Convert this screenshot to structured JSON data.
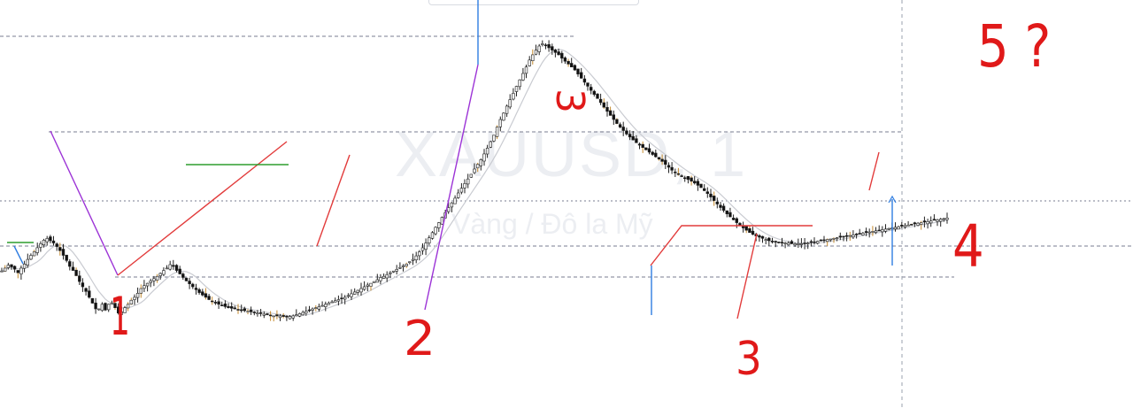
{
  "chart_data": {
    "type": "candlestick",
    "symbol_watermark": "XAUUSD, 1",
    "description_watermark": "Vàng / Đô la Mỹ",
    "y_axis_visible": false,
    "x_axis_visible": false,
    "close_series": [
      235,
      240,
      245,
      242,
      238,
      232,
      240,
      247,
      255,
      262,
      268,
      275,
      282,
      288,
      291,
      287,
      283,
      277,
      270,
      262,
      253,
      243,
      236,
      227,
      217,
      208,
      200,
      190,
      180,
      170,
      170,
      178,
      168,
      178,
      180,
      172,
      163,
      165,
      172,
      178,
      185,
      190,
      197,
      205,
      210,
      214,
      218,
      222,
      226,
      231,
      236,
      240,
      246,
      243,
      236,
      230,
      224,
      218,
      213,
      208,
      203,
      198,
      194,
      190,
      186,
      183,
      180,
      178,
      176,
      174,
      172,
      171,
      170,
      169,
      168,
      167,
      166,
      165,
      164,
      163,
      162,
      161,
      160,
      159,
      158,
      158,
      158,
      157,
      156,
      157,
      158,
      160,
      162,
      164,
      166,
      168,
      170,
      172,
      174,
      176,
      178,
      180,
      182,
      184,
      186,
      188,
      190,
      193,
      196,
      199,
      202,
      205,
      208,
      211,
      214,
      217,
      220,
      224,
      226,
      229,
      232,
      235,
      238,
      241,
      244,
      247,
      251,
      255,
      261,
      268,
      275,
      283,
      292,
      301,
      310,
      318,
      327,
      335,
      344,
      352,
      360,
      369,
      377,
      385,
      393,
      401,
      410,
      418,
      426,
      436,
      446,
      457,
      468,
      482,
      495,
      506,
      518,
      529,
      540,
      552,
      563,
      574,
      585,
      597,
      606,
      614,
      621,
      625,
      622,
      618,
      614,
      610,
      606,
      600,
      595,
      590,
      585,
      580,
      573,
      566,
      559,
      552,
      545,
      538,
      531,
      524,
      516,
      509,
      502,
      495,
      488,
      482,
      476,
      470,
      465,
      460,
      455,
      451,
      447,
      443,
      439,
      435,
      431,
      427,
      423,
      418,
      413,
      408,
      404,
      401,
      398,
      395,
      392,
      389,
      386,
      382,
      378,
      373,
      368,
      362,
      356,
      350,
      344,
      339,
      333,
      328,
      323,
      318,
      313,
      309,
      305,
      301,
      298,
      295,
      293,
      291,
      289,
      287,
      286,
      285,
      284,
      284,
      283,
      283,
      282,
      282,
      282,
      282,
      282,
      283,
      284,
      285,
      286,
      287,
      288,
      289,
      290,
      291,
      292,
      293,
      294,
      295,
      296,
      297,
      298,
      299,
      300,
      301,
      302,
      303,
      304,
      305,
      306,
      307,
      308,
      309,
      310,
      311,
      312,
      313,
      314,
      315,
      316,
      317,
      318,
      319,
      320,
      321,
      322,
      323,
      324,
      325,
      326
    ],
    "reference_lines": [
      {
        "style": "dashed"
      },
      {
        "style": "dashed"
      },
      {
        "style": "dotted"
      },
      {
        "style": "dashed"
      },
      {
        "style": "dashed"
      }
    ],
    "vertical_lines": [
      {
        "style": "dashed"
      }
    ]
  },
  "annotations": [
    {
      "text": "1"
    },
    {
      "text": "2"
    },
    {
      "text": "3"
    },
    {
      "text": "3"
    },
    {
      "text": "4"
    },
    {
      "text": "5 ?"
    }
  ],
  "colors": {
    "up_candle": "#f2f2f2",
    "down_candle": "#111111",
    "candle_wick": "#222222",
    "gold_wick_highlight": "#c58a2e",
    "moving_average": "#c9cbd1",
    "annotation_red": "#e01919",
    "drawing_red": "#e23b3b",
    "drawing_purple": "#9c33d6",
    "drawing_green": "#2e9e2e",
    "drawing_blue": "#2f7de1",
    "level_line": "#5a5f75",
    "watermark": "#eceef2"
  }
}
